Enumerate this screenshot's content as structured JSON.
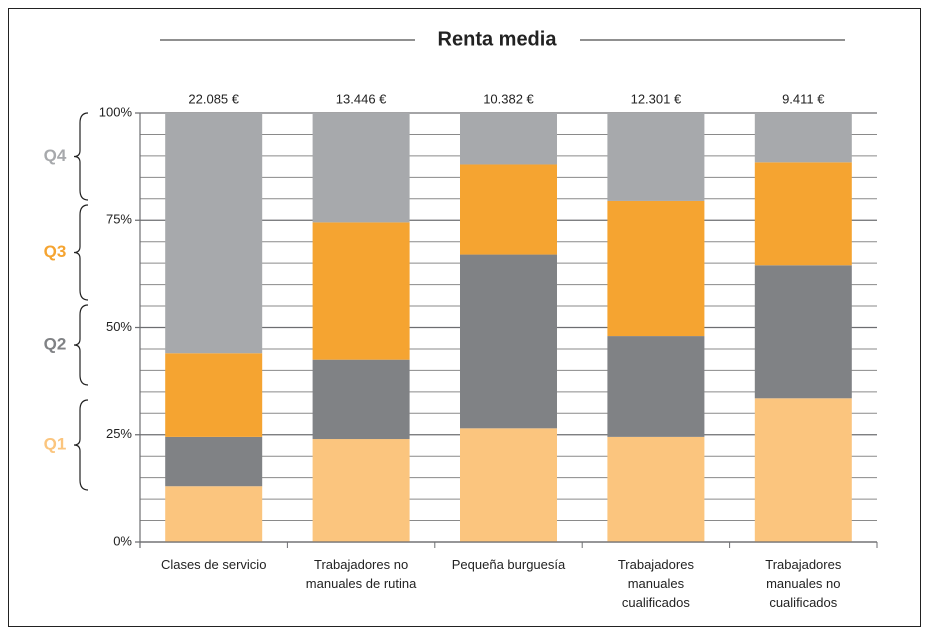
{
  "chart_data": {
    "type": "stacked-bar",
    "title": "Renta media",
    "categories": [
      "Clases de servicio",
      "Trabajadores no manuales de rutina",
      "Pequeña burguesía",
      "Trabajadores manuales cualificados",
      "Trabajadores manuales no cualificados"
    ],
    "top_labels": [
      "22.085 €",
      "13.446 €",
      "10.382 €",
      "12.301 €",
      "9.411 €"
    ],
    "series": [
      {
        "name": "Q1",
        "color": "#fbc57e",
        "values": [
          13,
          24,
          26.5,
          24.5,
          33.5
        ]
      },
      {
        "name": "Q2",
        "color": "#808285",
        "values": [
          11.5,
          18.5,
          40.5,
          23.5,
          31
        ]
      },
      {
        "name": "Q3",
        "color": "#f5a431",
        "values": [
          19.5,
          32,
          21,
          31.5,
          24
        ]
      },
      {
        "name": "Q4",
        "color": "#a7a9ac",
        "values": [
          56,
          25.5,
          12,
          20.5,
          11.5
        ]
      }
    ],
    "ylim": [
      0,
      100
    ],
    "yticks": [
      {
        "value": 0,
        "label": "0%"
      },
      {
        "value": 25,
        "label": "25%"
      },
      {
        "value": 50,
        "label": "50%"
      },
      {
        "value": 75,
        "label": "75%"
      },
      {
        "value": 100,
        "label": "100%"
      }
    ],
    "minor_yticks": [
      5,
      10,
      15,
      20,
      30,
      35,
      40,
      45,
      55,
      60,
      65,
      70,
      80,
      85,
      90,
      95
    ],
    "grid": true
  }
}
